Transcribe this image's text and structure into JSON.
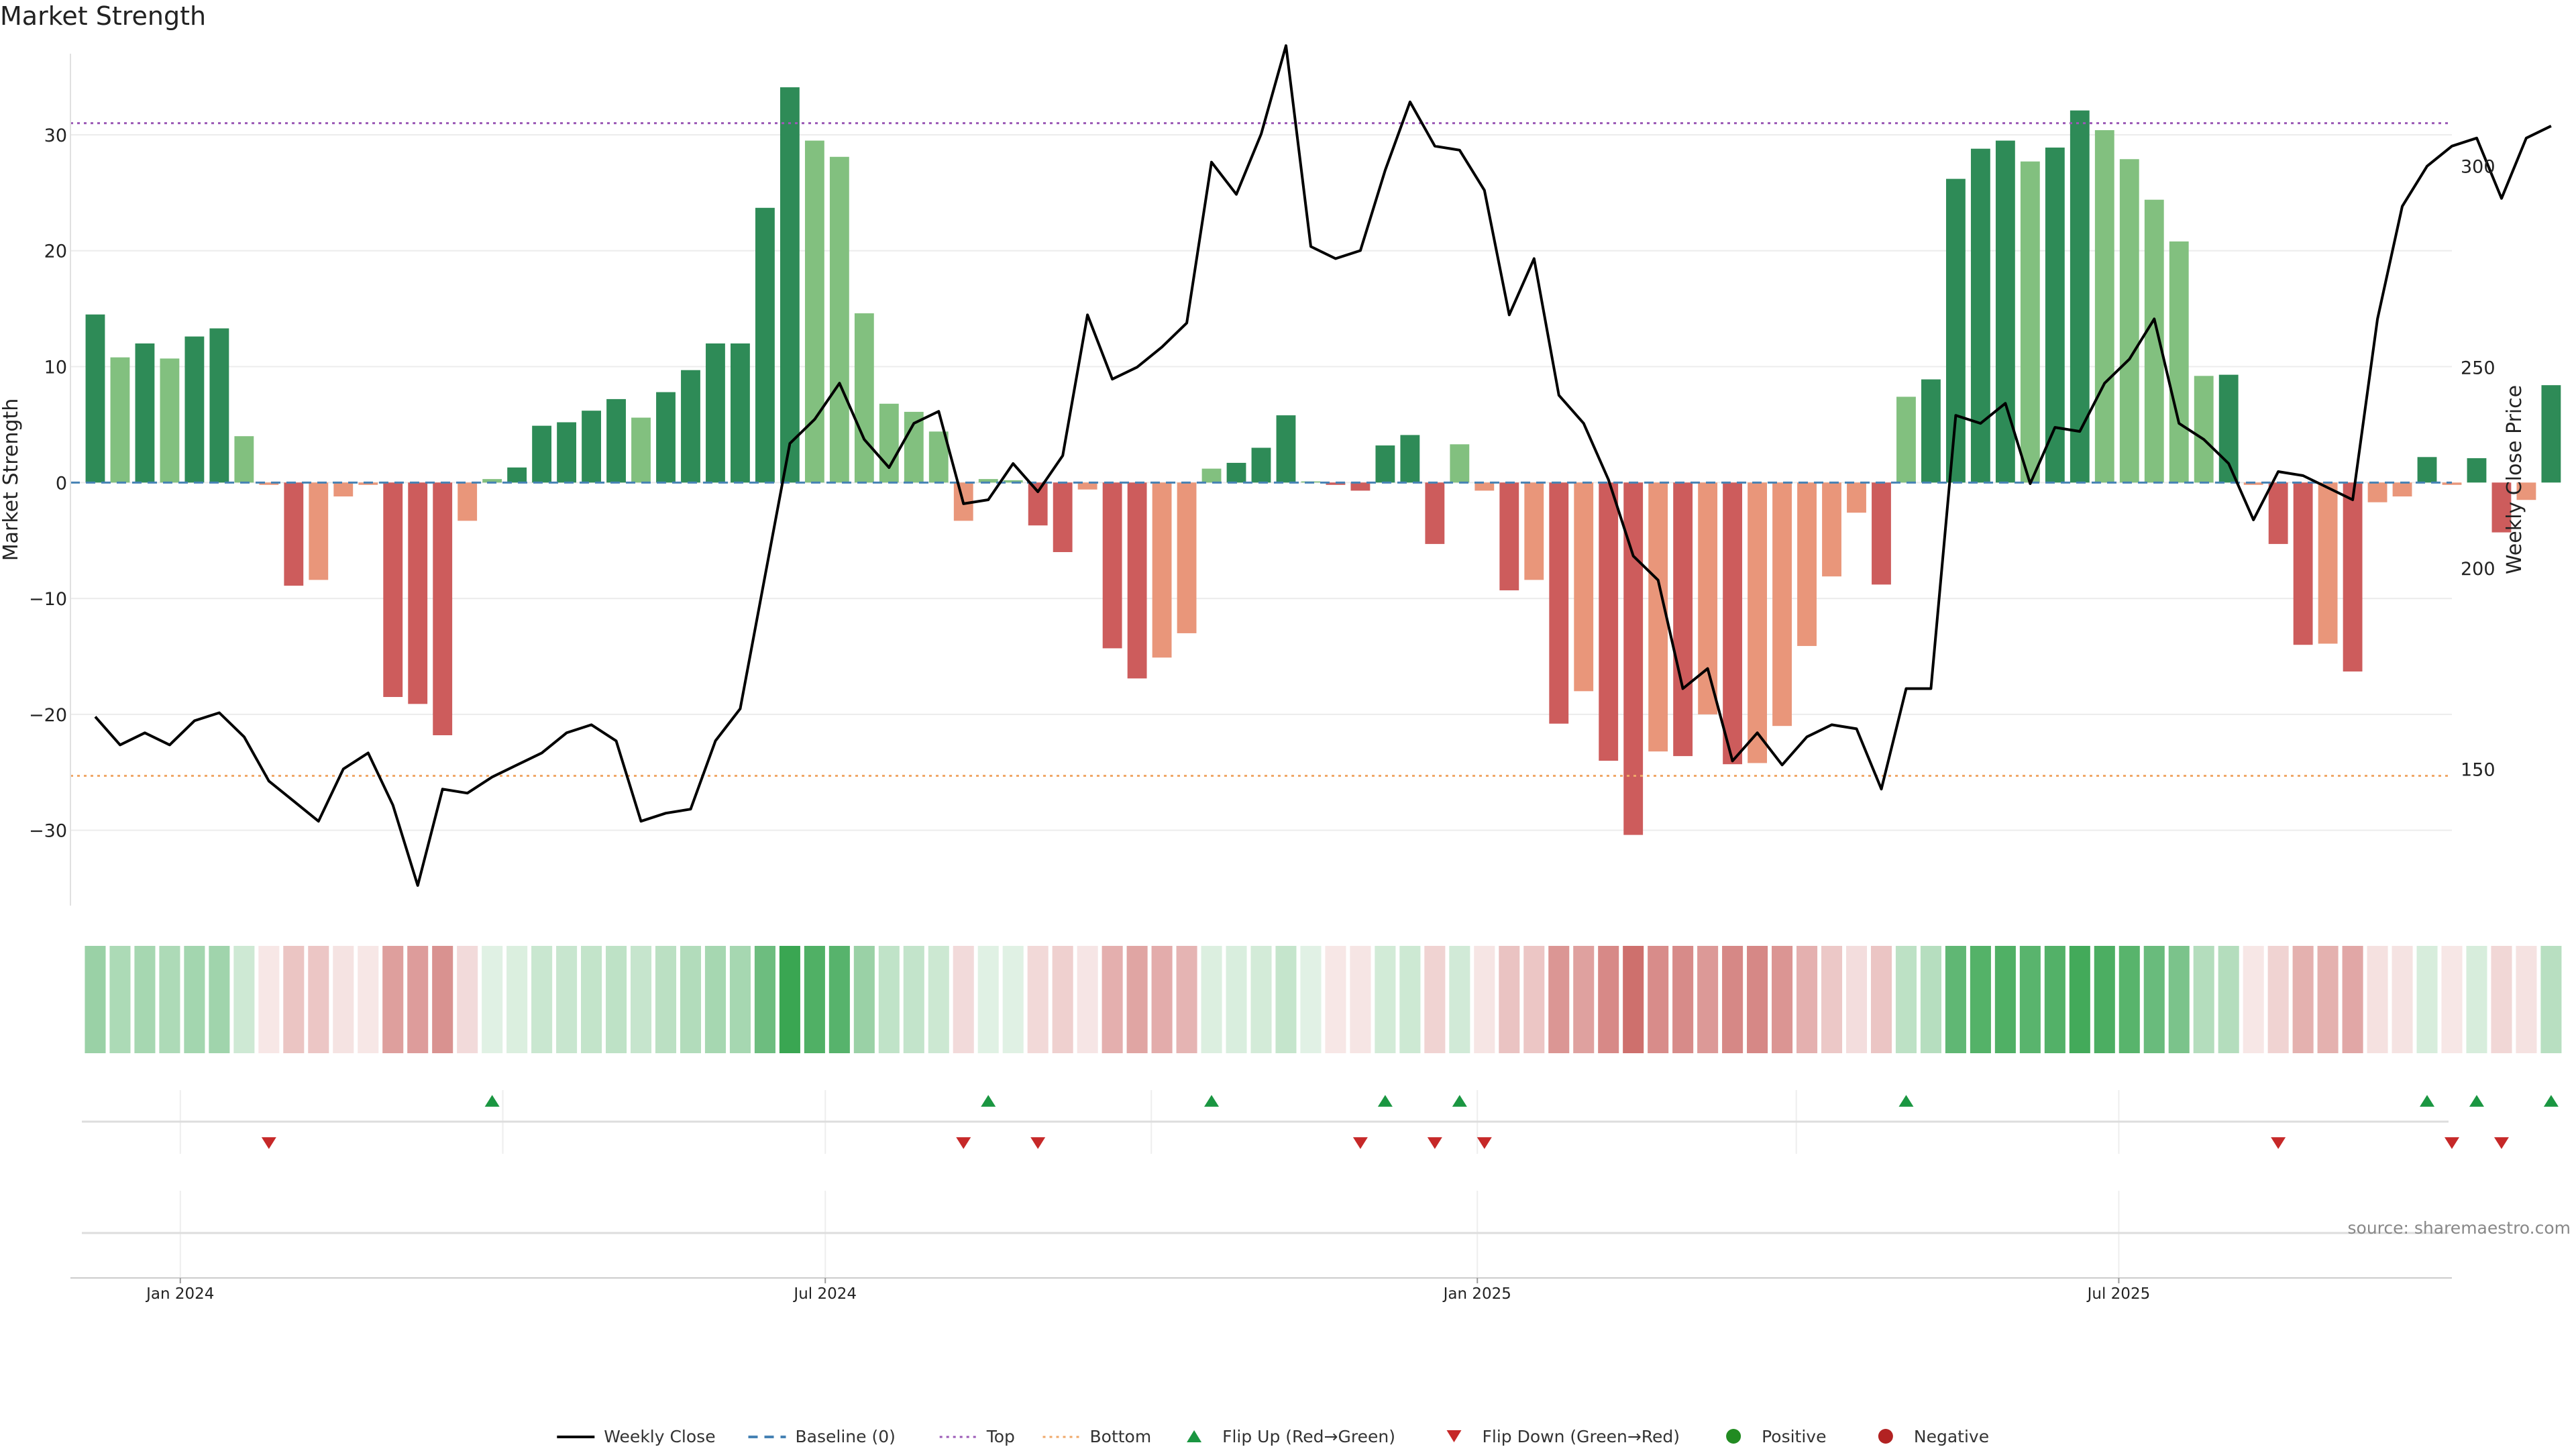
{
  "chart_data": {
    "type": "bar",
    "title": "Market Strength",
    "ylabel_left": "Market Strength",
    "ylabel_right": "Weekly Close Price",
    "ylim_left": [
      -36.5,
      37
    ],
    "ylim_right": [
      116,
      328
    ],
    "yticks_left": [
      -30,
      -20,
      -10,
      0,
      10,
      20,
      30
    ],
    "yticks_right": [
      150,
      200,
      250,
      300
    ],
    "x_start": "2023-12-01",
    "x_end": "2025-10-03",
    "x_ticks": [
      {
        "date": "2024-01-01",
        "label": "Jan 2024"
      },
      {
        "date": "2024-07-01",
        "label": "Jul 2024"
      },
      {
        "date": "2025-01-01",
        "label": "Jan 2025"
      },
      {
        "date": "2025-07-01",
        "label": "Jul 2025"
      }
    ],
    "thresholds": {
      "top": 31,
      "bottom": -25.3,
      "baseline": 0
    },
    "weeks": [
      "2023-12-08",
      "2023-12-15",
      "2023-12-22",
      "2023-12-29",
      "2024-01-05",
      "2024-01-12",
      "2024-01-19",
      "2024-01-26",
      "2024-02-02",
      "2024-02-09",
      "2024-02-16",
      "2024-02-23",
      "2024-03-01",
      "2024-03-08",
      "2024-03-15",
      "2024-03-22",
      "2024-03-29",
      "2024-04-05",
      "2024-04-12",
      "2024-04-19",
      "2024-04-26",
      "2024-05-03",
      "2024-05-10",
      "2024-05-17",
      "2024-05-24",
      "2024-05-31",
      "2024-06-07",
      "2024-06-14",
      "2024-06-21",
      "2024-06-28",
      "2024-07-05",
      "2024-07-12",
      "2024-07-19",
      "2024-07-26",
      "2024-08-02",
      "2024-08-09",
      "2024-08-16",
      "2024-08-23",
      "2024-08-30",
      "2024-09-06",
      "2024-09-13",
      "2024-09-20",
      "2024-09-27",
      "2024-10-04",
      "2024-10-11",
      "2024-10-18",
      "2024-10-25",
      "2024-11-01",
      "2024-11-08",
      "2024-11-15",
      "2024-11-22",
      "2024-11-29",
      "2024-12-06",
      "2024-12-13",
      "2024-12-20",
      "2024-12-27",
      "2025-01-03",
      "2025-01-10",
      "2025-01-17",
      "2025-01-24",
      "2025-01-31",
      "2025-02-07",
      "2025-02-14",
      "2025-02-21",
      "2025-02-28",
      "2025-03-07",
      "2025-03-14",
      "2025-03-21",
      "2025-03-28",
      "2025-04-04",
      "2025-04-11",
      "2025-04-18",
      "2025-04-25",
      "2025-05-02",
      "2025-05-09",
      "2025-05-16",
      "2025-05-23",
      "2025-05-30",
      "2025-06-06",
      "2025-06-13",
      "2025-06-20",
      "2025-06-27",
      "2025-07-04",
      "2025-07-11",
      "2025-07-18",
      "2025-07-25",
      "2025-08-01",
      "2025-08-08",
      "2025-08-15",
      "2025-08-22",
      "2025-08-29",
      "2025-09-05",
      "2025-09-12",
      "2025-09-19",
      "2025-09-26",
      "2025-10-03",
      "2025-10-10",
      "2025-10-17",
      "2025-10-24",
      "2025-10-31"
    ],
    "series": [
      {
        "name": "Market Strength",
        "values": [
          14.5,
          10.8,
          12,
          10.7,
          12.6,
          13.3,
          4,
          -0.2,
          -8.9,
          -8.4,
          -1.2,
          -0.2,
          -18.5,
          -19.1,
          -21.8,
          -3.3,
          0.3,
          1.3,
          4.9,
          5.2,
          6.2,
          7.2,
          5.6,
          7.8,
          9.7,
          12,
          12,
          23.7,
          34.1,
          29.5,
          28.1,
          14.6,
          6.8,
          6.1,
          4.4,
          -3.3,
          0.3,
          0.2,
          -3.7,
          -6,
          -0.6,
          -14.3,
          -16.9,
          -15.1,
          -13,
          1.2,
          1.7,
          3,
          5.8,
          0.1,
          -0.2,
          -0.7,
          3.2,
          4.1,
          -5.3,
          3.3,
          -0.7,
          -9.3,
          -8.4,
          -20.8,
          -18,
          -24,
          -30.4,
          -23.2,
          -23.6,
          -20,
          -24.3,
          -24.2,
          -21,
          -14.1,
          -8.1,
          -2.6,
          -8.8,
          7.4,
          8.9,
          26.2,
          28.8,
          29.5,
          27.7,
          28.9,
          32.1,
          30.4,
          27.9,
          24.4,
          20.8,
          9.2,
          9.3,
          -0.2,
          -5.3,
          -14,
          -13.9,
          -16.3,
          -1.7,
          -1.2,
          2.2,
          -0.2,
          2.1,
          -4.3,
          -1.5,
          8.4
        ]
      },
      {
        "name": "Weekly Close",
        "values": [
          163,
          156,
          159,
          156,
          162,
          164,
          158,
          147,
          142,
          137,
          150,
          154,
          141,
          121,
          145,
          144,
          148,
          151,
          154,
          159,
          161,
          157,
          137,
          139,
          140,
          157,
          165,
          198,
          231,
          237,
          246,
          232,
          225,
          236,
          239,
          216,
          217,
          226,
          219,
          228,
          263,
          247,
          250,
          255,
          261,
          301,
          293,
          308,
          330,
          280,
          277,
          279,
          299,
          316,
          305,
          304,
          294,
          263,
          277,
          243,
          236,
          222,
          203,
          197,
          170,
          175,
          152,
          159,
          151,
          158,
          161,
          160,
          145,
          170,
          170,
          238,
          236,
          241,
          221,
          235,
          234,
          246,
          252,
          262,
          236,
          232,
          226,
          212,
          224,
          223,
          220,
          217,
          262,
          290,
          300,
          305,
          307,
          292,
          307,
          310
        ]
      }
    ],
    "flips": {
      "up": [
        "2024-03-29",
        "2024-08-16",
        "2024-10-18",
        "2024-12-06",
        "2024-12-27",
        "2025-05-02",
        "2025-09-26",
        "2025-10-10",
        "2025-10-31"
      ],
      "down": [
        "2024-01-26",
        "2024-08-09",
        "2024-08-30",
        "2024-11-29",
        "2024-12-20",
        "2025-01-03",
        "2025-08-15",
        "2025-10-03",
        "2025-10-17"
      ]
    },
    "colors": {
      "strong_green": "#2e8b57",
      "light_green": "#82c07f",
      "strong_red": "#cd5c5c",
      "light_red": "#e9967a",
      "price_line": "#000000",
      "baseline": "#4682b4",
      "top": "#9b59b6",
      "bottom": "#f0a868",
      "flip_up": "#1a9641",
      "flip_down": "#c62828",
      "positive": "#228b22",
      "negative": "#b22222"
    },
    "legend": [
      {
        "label": "Weekly Close",
        "symbol": "solid-line",
        "color": "#000000"
      },
      {
        "label": "Baseline (0)",
        "symbol": "dash-line",
        "color": "#4682b4"
      },
      {
        "label": "Top",
        "symbol": "dot-line",
        "color": "#9b59b6"
      },
      {
        "label": "Bottom",
        "symbol": "dot-line",
        "color": "#f0a868"
      },
      {
        "label": "Flip Up (Red→Green)",
        "symbol": "triangle-up-icon",
        "color": "#1a9641"
      },
      {
        "label": "Flip Down (Green→Red)",
        "symbol": "triangle-down-icon",
        "color": "#c62828"
      },
      {
        "label": "Positive",
        "symbol": "circle-icon",
        "color": "#228b22"
      },
      {
        "label": "Negative",
        "symbol": "circle-icon",
        "color": "#b22222"
      }
    ],
    "legend_position": "bottom-center",
    "source": "source: sharemaestro.com"
  }
}
